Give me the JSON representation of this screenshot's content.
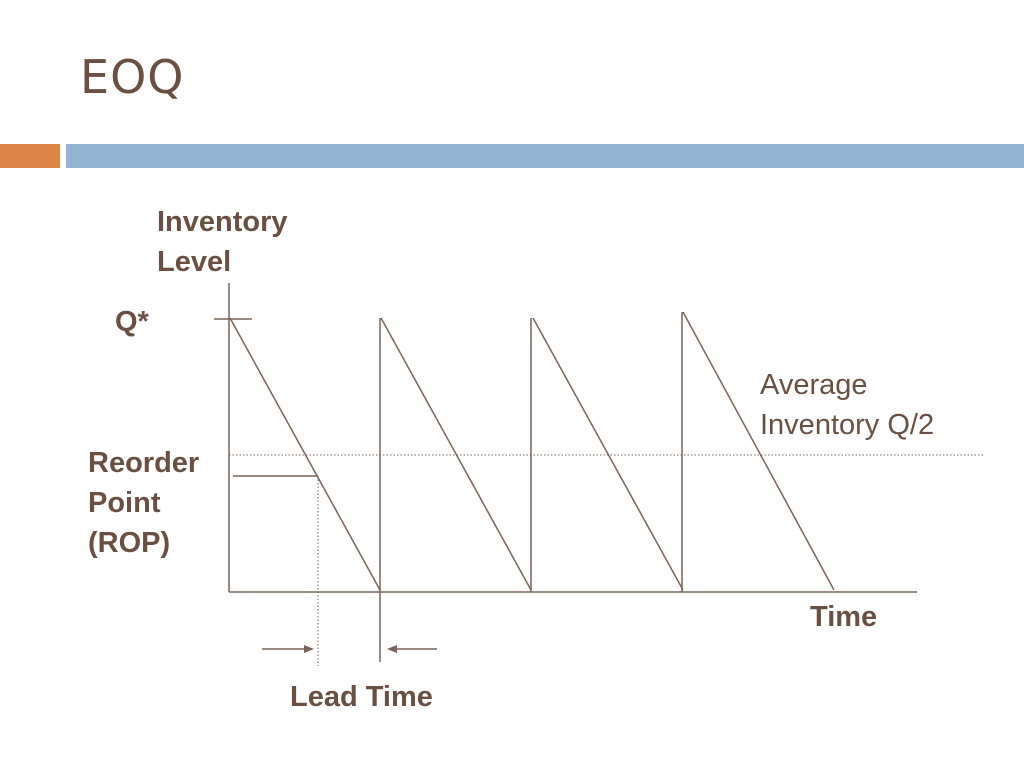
{
  "slide": {
    "title": "EOQ"
  },
  "colors": {
    "text": "#6a5043",
    "line": "#7a6358",
    "accent_left": "#dd8448",
    "accent_right": "#93b5d3"
  },
  "diagram": {
    "y_axis_label": [
      "Inventory",
      "Level"
    ],
    "q_star_label": "Q*",
    "rop_label": [
      "Reorder",
      "Point",
      "(ROP)"
    ],
    "avg_label": [
      "Average",
      "Inventory Q/2"
    ],
    "x_axis_label": "Time",
    "lead_time_label": "Lead Time"
  }
}
